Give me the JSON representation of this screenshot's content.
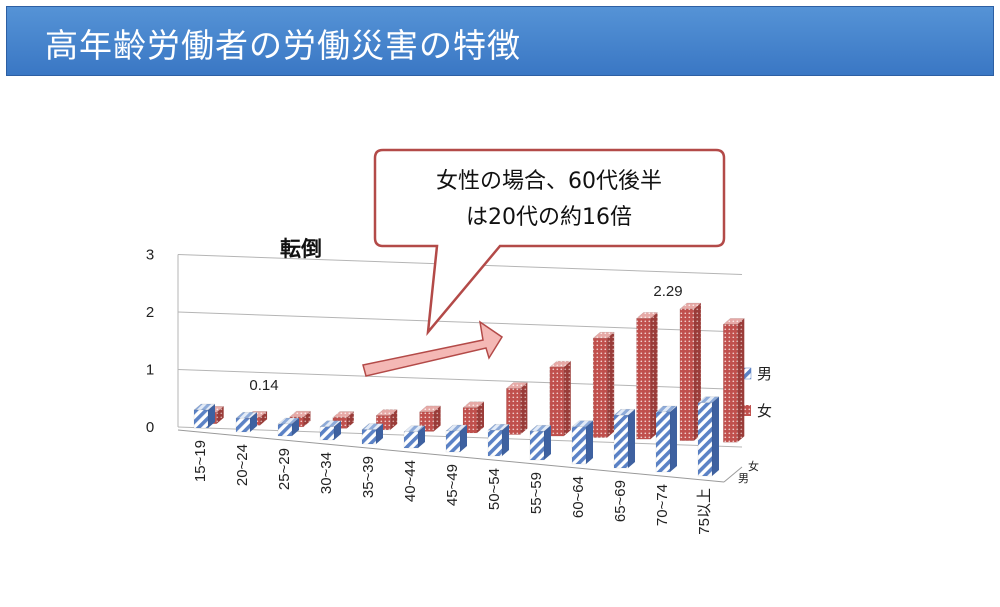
{
  "header": {
    "title": "高年齢労働者の労働災害の特徴"
  },
  "callout": {
    "line1": "女性の場合、60代後半",
    "line2": "は20代の約16倍"
  },
  "colors": {
    "male": "#5b82c6",
    "female": "#c0504d",
    "header": "#3f7fcf",
    "callout_border": "#b34a48"
  },
  "chart_data": {
    "type": "bar",
    "title": "転倒",
    "categories": [
      "15~19",
      "20~24",
      "25~29",
      "30~34",
      "35~39",
      "40~44",
      "45~49",
      "50~54",
      "55~59",
      "60~64",
      "65~69",
      "70~74",
      "75以上"
    ],
    "series": [
      {
        "name": "男",
        "values": [
          0.3,
          0.23,
          0.2,
          0.22,
          0.24,
          0.27,
          0.35,
          0.43,
          0.48,
          0.62,
          0.88,
          1.0,
          1.22
        ]
      },
      {
        "name": "女",
        "values": [
          0.2,
          0.14,
          0.17,
          0.19,
          0.25,
          0.34,
          0.44,
          0.8,
          1.2,
          1.73,
          2.1,
          2.29,
          2.05
        ]
      }
    ],
    "ylim": [
      0,
      3
    ],
    "yticks": [
      0,
      1,
      2,
      3
    ],
    "data_labels": [
      "0.14",
      "2.29"
    ],
    "legend_position": "right",
    "grid": true
  }
}
